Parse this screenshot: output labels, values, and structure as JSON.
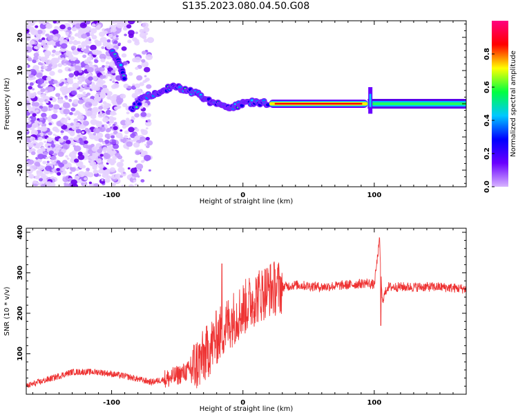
{
  "title": "S135.2023.080.04.50.G08",
  "chart_data": [
    {
      "type": "heatmap",
      "xlabel": "Height of straight line (km)",
      "ylabel": "Frequency (Hz)",
      "xlim": [
        -165,
        170
      ],
      "ylim": [
        -25,
        25
      ],
      "x_ticks": [
        -100,
        0,
        100
      ],
      "y_ticks": [
        -20,
        -10,
        0,
        10,
        20
      ],
      "colorbar": {
        "label": "Normalized spectral amplitude",
        "range": [
          0,
          1
        ],
        "ticks": [
          0.0,
          0.2,
          0.4,
          0.6,
          0.8
        ],
        "colors": [
          "#d8b4ff",
          "#6a00ff",
          "#0000ff",
          "#00c8ff",
          "#00ff40",
          "#ffff00",
          "#ff0000",
          "#ff0080"
        ]
      },
      "features": [
        {
          "label": "noise",
          "x_range": [
            -165,
            -95
          ],
          "freq_range": [
            -25,
            25
          ],
          "amplitude": 0.1
        },
        {
          "label": "noise",
          "x_range": [
            -95,
            -70
          ],
          "freq_range": [
            -25,
            25
          ],
          "amplitude": 0.05
        },
        {
          "label": "arc",
          "x": [
            -100,
            -97,
            -93,
            -90
          ],
          "freq": [
            16,
            14,
            11,
            7
          ],
          "amplitude": 0.25
        },
        {
          "label": "ridge",
          "x": [
            -85,
            -75,
            -65,
            -55,
            -45,
            -35,
            -25,
            -15,
            -8,
            0,
            10,
            20
          ],
          "freq": [
            -2,
            2,
            3.5,
            5,
            4.5,
            3,
            0.5,
            -0.5,
            -1,
            0,
            0.5,
            0
          ],
          "amplitude": 0.35
        },
        {
          "label": "carrier",
          "x_range": [
            20,
            95
          ],
          "freq": 0,
          "amplitude": 0.9
        },
        {
          "label": "carrier",
          "x_range": [
            95,
            170
          ],
          "freq": 0,
          "amplitude": 0.3
        }
      ]
    },
    {
      "type": "line",
      "xlabel": "Height of straight line (km)",
      "ylabel": "SNR (10 * v/v)",
      "xlim": [
        -165,
        170
      ],
      "ylim": [
        0,
        410
      ],
      "x_ticks": [
        -100,
        0,
        100
      ],
      "y_ticks": [
        100,
        200,
        300,
        400
      ],
      "color": "#ee3333",
      "x": [
        -165,
        -150,
        -130,
        -110,
        -90,
        -70,
        -55,
        -40,
        -30,
        -20,
        -10,
        0,
        10,
        20,
        30,
        40,
        60,
        80,
        95,
        100,
        104,
        106,
        110,
        130,
        150,
        170
      ],
      "y": [
        20,
        35,
        55,
        55,
        45,
        30,
        40,
        60,
        90,
        140,
        180,
        210,
        240,
        260,
        265,
        270,
        265,
        270,
        275,
        270,
        380,
        230,
        265,
        265,
        265,
        260
      ],
      "spikes": [
        {
          "x": -16,
          "y": 322
        },
        {
          "x": 105,
          "y": 405
        },
        {
          "x": 105,
          "y": 170
        }
      ]
    }
  ]
}
